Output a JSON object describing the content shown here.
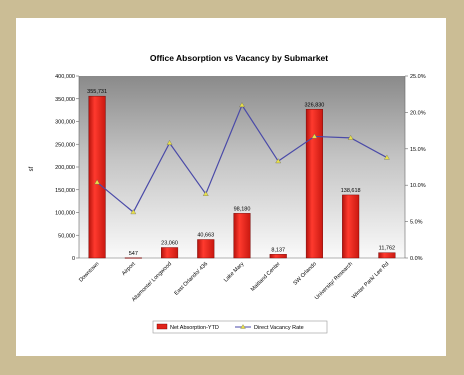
{
  "chart_data": {
    "type": "bar",
    "title": "Office Absorption vs Vacancy by Submarket",
    "ylabel": "sf",
    "categories": [
      "Downtown",
      "Airport",
      "Altamonte/ Longwood",
      "East Orlando/ 436",
      "Lake Mary",
      "Maitland Center",
      "SW Orlando",
      "University/ Research",
      "Winter Park/ Lee Rd"
    ],
    "ylim": [
      0,
      400000
    ],
    "y_ticks": [
      "0",
      "50,000",
      "100,000",
      "150,000",
      "200,000",
      "250,000",
      "300,000",
      "350,000",
      "400,000"
    ],
    "y2lim": [
      0,
      25
    ],
    "y2_ticks": [
      "0.0%",
      "5.0%",
      "10.0%",
      "15.0%",
      "20.0%",
      "25.0%"
    ],
    "series": [
      {
        "name": "Net Absorption-YTD",
        "kind": "bar",
        "axis": "left",
        "color": "#e2231a",
        "values": [
          355731,
          547,
          23060,
          40663,
          98180,
          8137,
          326830,
          138618,
          11762
        ],
        "labels": [
          "355,731",
          "547",
          "23,060",
          "40,663",
          "98,180",
          "8,137",
          "326,830",
          "138,618",
          "11,762"
        ]
      },
      {
        "name": "Direct Vacancy Rate",
        "kind": "line",
        "axis": "right",
        "color": "#4a4aa8",
        "marker_color": "#e8e04a",
        "values": [
          10.4,
          6.3,
          15.8,
          8.8,
          21.0,
          13.3,
          16.7,
          16.5,
          13.8
        ]
      }
    ],
    "grid": false,
    "legend": "bottom"
  }
}
